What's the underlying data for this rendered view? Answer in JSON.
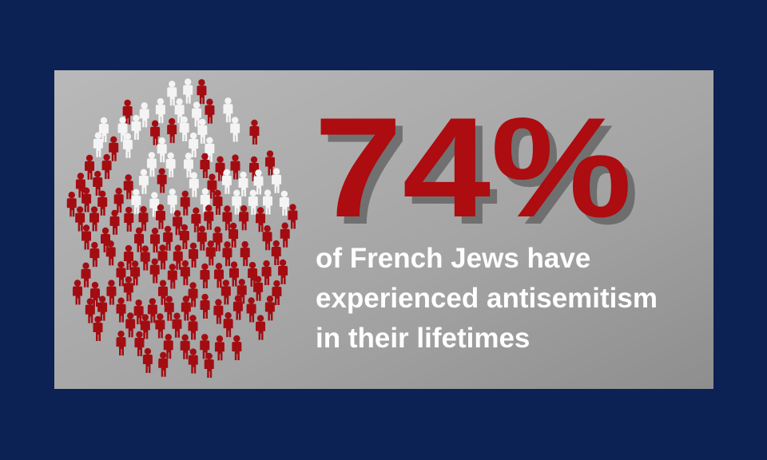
{
  "headline": {
    "stat": "74%",
    "caption_lines": [
      "of French Jews have",
      "experienced antisemitism",
      "in their lifetimes"
    ]
  }
}
